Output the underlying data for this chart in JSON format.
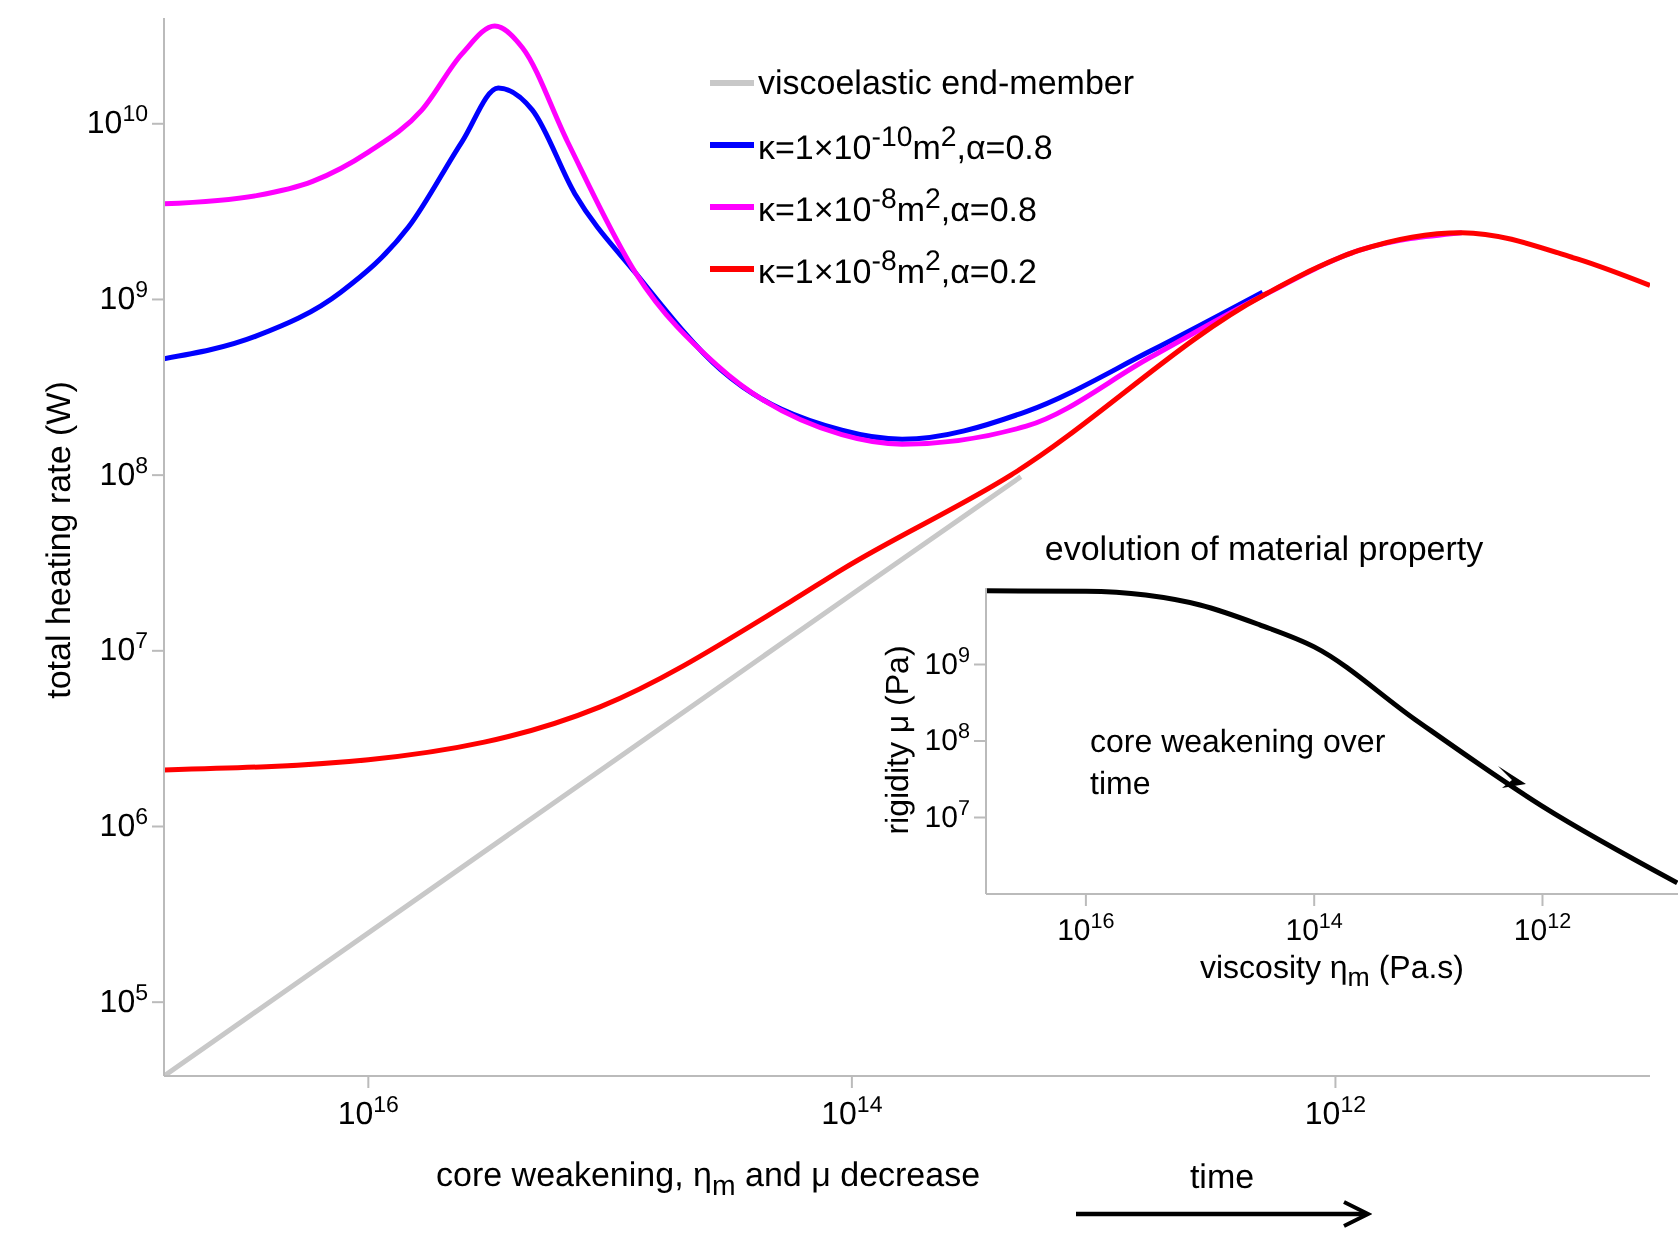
{
  "chart_data": [
    {
      "type": "line",
      "xlabel": "core weakening, η$_{m}$ and μ decrease",
      "ylabel": "total heating rate (W)",
      "annotations": [
        "time"
      ],
      "log": "xy",
      "xlim": [
        7e+16,
        50000000000.0
      ],
      "ylim": [
        38000.0,
        40000000000.0
      ],
      "xticks": [
        {
          "value": 1e+16,
          "label": "10$^{16}$"
        },
        {
          "value": 100000000000000.0,
          "label": "10$^{14}$"
        },
        {
          "value": 1000000000000.0,
          "label": "10$^{12}$"
        }
      ],
      "yticks": [
        {
          "value": 100000.0,
          "label": "10$^{5}$"
        },
        {
          "value": 1000000.0,
          "label": "10$^{6}$"
        },
        {
          "value": 10000000.0,
          "label": "10$^{7}$"
        },
        {
          "value": 100000000.0,
          "label": "10$^{8}$"
        },
        {
          "value": 1000000000.0,
          "label": "10$^{9}$"
        },
        {
          "value": 10000000000.0,
          "label": "10$^{10}$"
        }
      ],
      "legend": "top right",
      "marker": "none",
      "series": [
        {
          "name": "viscoelastic end-member",
          "color": "#c8c8c8",
          "x": [
            7e+16,
            100000000000000.0,
            20000000000000.0
          ],
          "values": [
            38000.0,
            21000000.0,
            98000000.0
          ]
        },
        {
          "name": "κ=1×10$^{-10}$m$^{2}$,α=0.8",
          "color": "#0000ff",
          "x": [
            7e+16,
            2.9e+16,
            1.3e+16,
            6800000000000000.0,
            4100000000000000.0,
            2900000000000000.0,
            2100000000000000.0,
            1400000000000000.0,
            780000000000000.0,
            350000000000000.0,
            110000000000000.0,
            62000000000000.0,
            19000000000000.0,
            5800000000000.0,
            2000000000000.0
          ],
          "values": [
            460000000.0,
            620000000.0,
            1100000000.0,
            2600000000.0,
            7900000000.0,
            16000000000.0,
            12000000000.0,
            4000000000.0,
            1400000000.0,
            400000000.0,
            180000000.0,
            160000000.0,
            230000000.0,
            510000000.0,
            1100000000.0
          ]
        },
        {
          "name": "κ=1×10$^{-8}$m$^{2}$,α=0.8",
          "color": "#ff00ff",
          "x": [
            7e+16,
            2.9e+16,
            1.7e+16,
            1e+16,
            6000000000000000.0,
            4100000000000000.0,
            3000000000000000.0,
            2300000000000000.0,
            1500000000000000.0,
            780000000000000.0,
            360000000000000.0,
            110000000000000.0,
            62000000000000.0,
            19000000000000.0,
            5800000000000.0,
            2000000000000.0,
            800000000000.0,
            300000000000.0
          ],
          "values": [
            3500000000.0,
            3900000000.0,
            4700000000.0,
            6900000000.0,
            12000000000.0,
            25000000000.0,
            36000000000.0,
            27000000000.0,
            7900000000.0,
            1400000000.0,
            420000000.0,
            170000000.0,
            150000000.0,
            190000000.0,
            470000000.0,
            1050000000.0,
            1900000000.0,
            2400000000.0
          ]
        },
        {
          "name": "κ=1×10$^{-8}$m$^{2}$,α=0.2",
          "color": "#ff0000",
          "x": [
            7e+16,
            1e+16,
            1100000000000000.0,
            180000000000000.0,
            110000000000000.0,
            22000000000000.0,
            2000000000000.0,
            800000000000.0,
            300000000000.0,
            100000000000.0,
            50000000000.0
          ],
          "values": [
            2100000.0,
            2400000.0,
            4800000.0,
            19000000.0,
            29000000.0,
            100000000.0,
            1050000000.0,
            1900000000.0,
            2400000000.0,
            1700000000.0,
            1200000000.0
          ]
        }
      ]
    },
    {
      "type": "line",
      "title": "evolution of material property",
      "xlabel": "viscosity η$_{m}$ (Pa.s)",
      "ylabel": "rigidity μ (Pa)",
      "annotations": [
        "core weakening over time"
      ],
      "log": "xy",
      "xlim": [
        7.5e+16,
        65000000000.0
      ],
      "ylim": [
        1000000.0,
        10000000000.0
      ],
      "xticks": [
        {
          "value": 1e+16,
          "label": "10$^{16}$"
        },
        {
          "value": 100000000000000.0,
          "label": "10$^{14}$"
        },
        {
          "value": 1000000000000.0,
          "label": "10$^{12}$"
        }
      ],
      "yticks": [
        {
          "value": 10000000.0,
          "label": "10$^{7}$"
        },
        {
          "value": 100000000.0,
          "label": "10$^{8}$"
        },
        {
          "value": 1000000000.0,
          "label": "10$^{9}$"
        }
      ],
      "marker": "none",
      "series": [
        {
          "color": "#000000",
          "x": [
            7.5e+16,
            1e+16,
            3000000000000000.0,
            1000000000000000.0,
            300000000000000.0,
            100000000000000.0,
            13000000000000.0,
            1000000000000.0,
            66000000000.0
          ],
          "values": [
            9200000000.0,
            9100000000.0,
            8100000000.0,
            6000000000.0,
            3300000000.0,
            1700000000.0,
            190000000.0,
            14000000.0,
            1400000.0
          ]
        }
      ]
    }
  ]
}
